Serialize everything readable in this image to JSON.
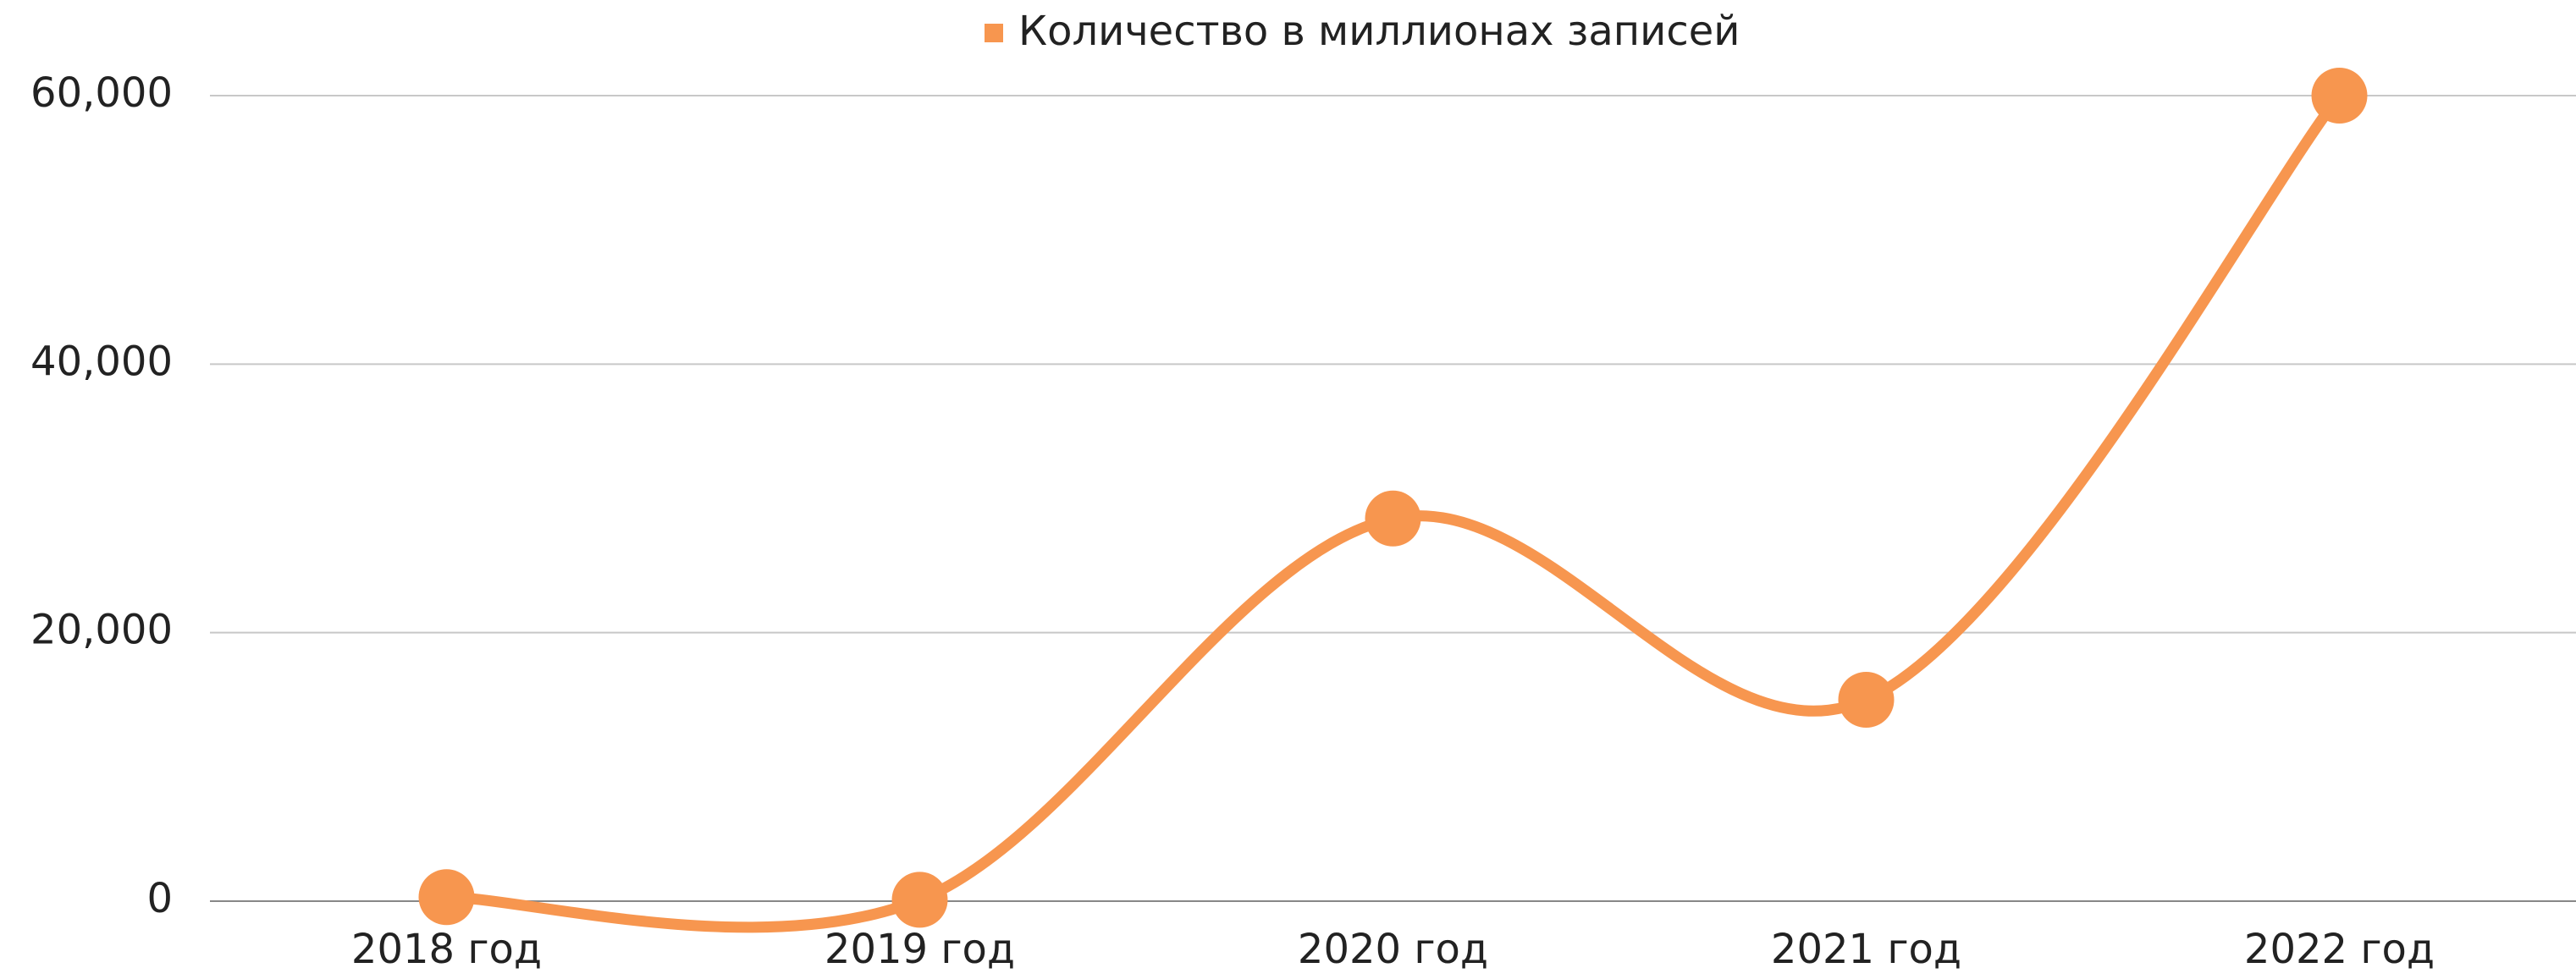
{
  "chart_data": {
    "type": "line",
    "categories": [
      "2018 год",
      "2019 год",
      "2020 год",
      "2021 год",
      "2022 год"
    ],
    "series": [
      {
        "name": "Количество в миллионах записей",
        "color": "#f7964f",
        "values": [
          300,
          100,
          28500,
          15000,
          60000
        ]
      }
    ],
    "ylim": [
      0,
      60000
    ],
    "yticks": [
      {
        "value": 0,
        "label": "0"
      },
      {
        "value": 20000,
        "label": "20,000"
      },
      {
        "value": 40000,
        "label": "40,000"
      },
      {
        "value": 60000,
        "label": "60,000"
      }
    ],
    "grid": true,
    "smooth": true,
    "legend": "top"
  }
}
